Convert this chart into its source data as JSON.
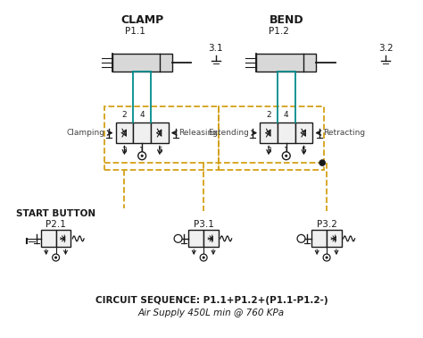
{
  "bg_color": "#ffffff",
  "lc": "#1a1a1a",
  "tc": "#008B8B",
  "yc": "#D4A017",
  "title_clamp": "CLAMP",
  "title_bend": "BEND",
  "label_p11": "P1.1",
  "label_p12": "P1.2",
  "label_31": "3.1",
  "label_32": "3.2",
  "label_clamping": "Clamping",
  "label_releasing": "Releasing",
  "label_extending": "Extending",
  "label_retracting": "Retracting",
  "label_start": "START BUTTON",
  "label_p21": "P2.1",
  "label_p31": "P3.1",
  "label_p32": "P3.2",
  "circuit_seq": "CIRCUIT SEQUENCE: P1.1+P1.2+(P1.1-P1.2-)",
  "air_supply": "Air Supply 450L min @ 760 KPa",
  "figsize": [
    4.74,
    3.78
  ],
  "dpi": 100
}
